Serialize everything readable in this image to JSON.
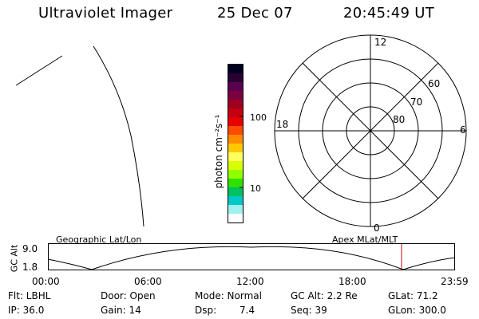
{
  "header": {
    "title": "Ultraviolet Imager",
    "date": "25 Dec 07",
    "time": "20:45:49 UT"
  },
  "colorbar": {
    "label": "photon cm⁻²s⁻¹",
    "tick_labels": [
      "100",
      "10"
    ],
    "colors": [
      "#000022",
      "#2a0030",
      "#5a0050",
      "#7a0040",
      "#a00020",
      "#c40010",
      "#e80000",
      "#ff4a00",
      "#ff8c00",
      "#ffc800",
      "#ffff60",
      "#d8ff00",
      "#90ff00",
      "#30e000",
      "#00c060",
      "#00c8c8",
      "#a0f0f0",
      "#ffffff"
    ]
  },
  "polar": {
    "mlt_labels": [
      "12",
      "18",
      "6",
      "0"
    ],
    "lat_labels": [
      "60",
      "70",
      "80"
    ]
  },
  "timeline": {
    "title_left": "Geographic Lat/Lon",
    "title_right": "Apex MLat/MLT",
    "y_label": "GC Alt",
    "y_ticks": [
      "9.0",
      "1.8"
    ],
    "x_ticks": [
      "00:00",
      "06:00",
      "12:00",
      "18:00",
      "23:59"
    ],
    "marker_time": "20:45:49",
    "marker_color": "#cc0000"
  },
  "info": {
    "flt": "Flt: LBHL",
    "ip": "IP: 36.0",
    "door": "Door: Open",
    "gain": "Gain: 14",
    "mode": "Mode: Normal",
    "dsp_label": "Dsp:",
    "dsp_value": "7.4",
    "gcalt": "GC Alt: 2.2 Re",
    "seq": "Seq: 39",
    "glat": "GLat:  71.2",
    "glon": "GLon: 300.0"
  }
}
